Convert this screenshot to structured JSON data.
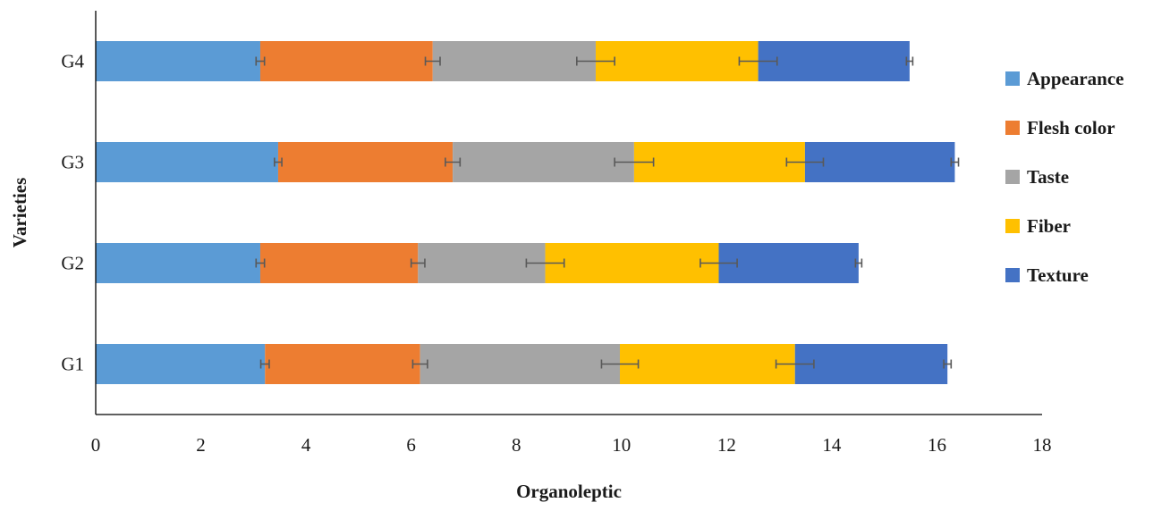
{
  "chart_data": {
    "type": "bar",
    "orientation": "horizontal",
    "stacked": true,
    "categories": [
      "G1",
      "G2",
      "G3",
      "G4"
    ],
    "series": [
      {
        "name": "Appearance",
        "color": "#5B9BD5",
        "values": [
          3.22,
          3.13,
          3.47,
          3.13
        ],
        "error": [
          0.08,
          0.08,
          0.07,
          0.08
        ]
      },
      {
        "name": "Flesh color",
        "color": "#ED7D31",
        "values": [
          2.95,
          3.0,
          3.32,
          3.28
        ],
        "error": [
          0.14,
          0.13,
          0.14,
          0.14
        ]
      },
      {
        "name": "Taste",
        "color": "#A5A5A5",
        "values": [
          3.8,
          2.42,
          3.45,
          3.1
        ],
        "error": [
          0.35,
          0.36,
          0.37,
          0.36
        ]
      },
      {
        "name": "Fiber",
        "color": "#FFC000",
        "values": [
          3.33,
          3.3,
          3.25,
          3.09
        ],
        "error": [
          0.36,
          0.35,
          0.35,
          0.36
        ]
      },
      {
        "name": "Texture",
        "color": "#4472C4",
        "values": [
          2.9,
          2.66,
          2.85,
          2.88
        ],
        "error": [
          0.07,
          0.06,
          0.07,
          0.06
        ]
      }
    ],
    "xlabel": "Organoleptic",
    "ylabel": "Varieties",
    "xlim": [
      0,
      18
    ],
    "xticks": [
      "0",
      "2",
      "4",
      "6",
      "8",
      "10",
      "12",
      "14",
      "16",
      "18"
    ],
    "grid": false,
    "legend_position": "right"
  }
}
